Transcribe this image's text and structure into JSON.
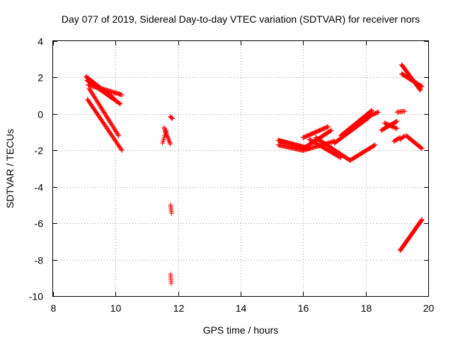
{
  "chart_data": {
    "type": "scatter",
    "title": "Day 077 of 2019, Sidereal Day-to-day VTEC variation (SDTVAR) for receiver nors",
    "xlabel": "GPS time / hours",
    "ylabel": "SDTVAR / TECUs",
    "xlim": [
      8,
      20
    ],
    "ylim": [
      -10,
      4
    ],
    "xticks": [
      8,
      10,
      12,
      14,
      16,
      18,
      20
    ],
    "yticks": [
      -10,
      -8,
      -6,
      -4,
      -2,
      0,
      2,
      4
    ],
    "grid": true,
    "marker": "+",
    "color": "#ff0000",
    "segments": [
      {
        "x0": 9.05,
        "y0": 2.05,
        "x1": 9.95,
        "y1": 0.85,
        "n": 40
      },
      {
        "x0": 9.08,
        "y0": 1.85,
        "x1": 10.15,
        "y1": 0.55,
        "n": 45
      },
      {
        "x0": 9.12,
        "y0": 1.6,
        "x1": 10.2,
        "y1": 1.05,
        "n": 40
      },
      {
        "x0": 9.15,
        "y0": 1.4,
        "x1": 10.1,
        "y1": -1.2,
        "n": 45
      },
      {
        "x0": 9.1,
        "y0": 0.8,
        "x1": 10.2,
        "y1": -2.0,
        "n": 50
      },
      {
        "x0": 11.55,
        "y0": -0.75,
        "x1": 11.75,
        "y1": -1.65,
        "n": 14
      },
      {
        "x0": 11.5,
        "y0": -1.6,
        "x1": 11.62,
        "y1": -0.9,
        "n": 8
      },
      {
        "x0": 11.75,
        "y0": -0.15,
        "x1": 11.82,
        "y1": -0.25,
        "n": 4
      },
      {
        "x0": 11.76,
        "y0": -5.0,
        "x1": 11.79,
        "y1": -5.45,
        "n": 6
      },
      {
        "x0": 11.76,
        "y0": -8.8,
        "x1": 11.78,
        "y1": -9.3,
        "n": 6
      },
      {
        "x0": 15.2,
        "y0": -1.45,
        "x1": 16.2,
        "y1": -1.9,
        "n": 45
      },
      {
        "x0": 15.2,
        "y0": -1.7,
        "x1": 16.0,
        "y1": -2.0,
        "n": 30
      },
      {
        "x0": 16.0,
        "y0": -2.0,
        "x1": 17.0,
        "y1": -1.5,
        "n": 35
      },
      {
        "x0": 16.0,
        "y0": -1.3,
        "x1": 16.8,
        "y1": -0.7,
        "n": 30
      },
      {
        "x0": 16.0,
        "y0": -1.9,
        "x1": 16.9,
        "y1": -0.9,
        "n": 35
      },
      {
        "x0": 16.2,
        "y0": -1.4,
        "x1": 17.2,
        "y1": -2.4,
        "n": 35
      },
      {
        "x0": 16.4,
        "y0": -1.3,
        "x1": 17.5,
        "y1": -2.55,
        "n": 40
      },
      {
        "x0": 17.0,
        "y0": -1.6,
        "x1": 18.1,
        "y1": -0.2,
        "n": 45
      },
      {
        "x0": 17.2,
        "y0": -1.2,
        "x1": 18.2,
        "y1": 0.2,
        "n": 40
      },
      {
        "x0": 17.5,
        "y0": -2.55,
        "x1": 18.3,
        "y1": -1.7,
        "n": 30
      },
      {
        "x0": 18.0,
        "y0": -0.2,
        "x1": 18.4,
        "y1": 0.1,
        "n": 15
      },
      {
        "x0": 18.5,
        "y0": -0.9,
        "x1": 19.0,
        "y1": -0.4,
        "n": 20
      },
      {
        "x0": 18.6,
        "y0": -0.5,
        "x1": 19.0,
        "y1": -0.8,
        "n": 15
      },
      {
        "x0": 19.0,
        "y0": 0.1,
        "x1": 19.25,
        "y1": 0.15,
        "n": 8
      },
      {
        "x0": 19.1,
        "y0": -1.4,
        "x1": 19.25,
        "y1": -1.2,
        "n": 6
      },
      {
        "x0": 18.9,
        "y0": -1.5,
        "x1": 19.1,
        "y1": -1.3,
        "n": 8
      },
      {
        "x0": 19.3,
        "y0": -1.2,
        "x1": 19.8,
        "y1": -1.9,
        "n": 25
      },
      {
        "x0": 19.15,
        "y0": 2.7,
        "x1": 19.75,
        "y1": 1.3,
        "n": 35
      },
      {
        "x0": 19.15,
        "y0": 2.2,
        "x1": 19.8,
        "y1": 1.5,
        "n": 30
      },
      {
        "x0": 19.1,
        "y0": -7.5,
        "x1": 19.8,
        "y1": -5.8,
        "n": 45
      }
    ]
  }
}
